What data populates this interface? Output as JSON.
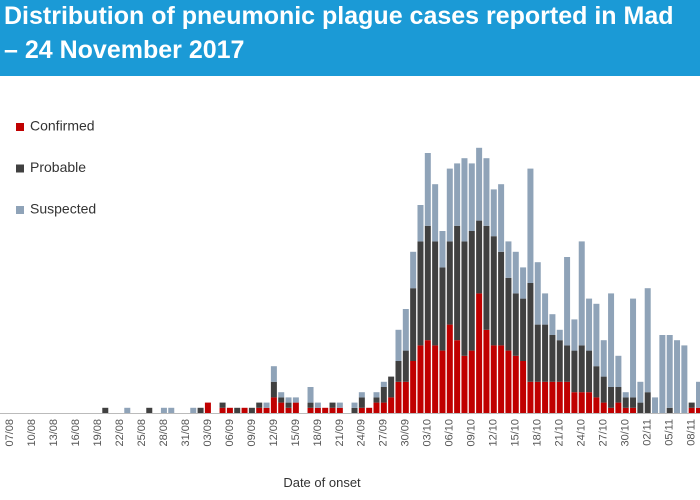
{
  "chart_data": {
    "type": "stacked-bar",
    "title_lines": [
      "Distribution of pneumonic plague cases reported in Mad",
      "– 24 November 2017"
    ],
    "x_label": "Date of onset",
    "categories": [
      "07/08",
      null,
      null,
      "10/08",
      null,
      null,
      "13/08",
      null,
      null,
      "16/08",
      null,
      null,
      "19/08",
      null,
      null,
      "22/08",
      null,
      null,
      "25/08",
      null,
      null,
      "28/08",
      null,
      null,
      "31/08",
      null,
      null,
      "03/09",
      null,
      null,
      "06/09",
      null,
      null,
      "09/09",
      null,
      null,
      "12/09",
      null,
      null,
      "15/09",
      null,
      null,
      "18/09",
      null,
      null,
      "21/09",
      null,
      null,
      "24/09",
      null,
      null,
      "27/09",
      null,
      null,
      "30/09",
      null,
      null,
      "03/10",
      null,
      null,
      "06/10",
      null,
      null,
      "09/10",
      null,
      null,
      "12/10",
      null,
      null,
      "15/10",
      null,
      null,
      "18/10",
      null,
      null,
      "21/10",
      null,
      null,
      "24/10",
      null,
      null,
      "27/10",
      null,
      null,
      "30/10",
      null,
      null,
      "02/11",
      null,
      null,
      "05/11",
      null,
      null,
      "08/11",
      null
    ],
    "series": [
      {
        "name": "Confirmed",
        "color": "#c00000",
        "values": [
          0,
          0,
          0,
          0,
          0,
          0,
          0,
          0,
          0,
          0,
          0,
          0,
          0,
          0,
          0,
          0,
          0,
          0,
          0,
          0,
          0,
          0,
          0,
          0,
          0,
          0,
          0,
          2,
          0,
          1,
          1,
          0,
          1,
          0,
          1,
          1,
          3,
          2,
          1,
          2,
          0,
          1,
          1,
          1,
          1,
          1,
          0,
          0,
          1,
          1,
          2,
          2,
          3,
          6,
          6,
          10,
          13,
          14,
          13,
          12,
          17,
          14,
          11,
          12,
          23,
          16,
          13,
          13,
          12,
          11,
          10,
          6,
          6,
          6,
          6,
          6,
          6,
          4,
          4,
          4,
          3,
          2,
          1,
          2,
          1,
          1,
          0,
          0,
          0,
          0,
          0,
          0,
          0,
          1,
          1
        ]
      },
      {
        "name": "Probable",
        "color": "#404040",
        "values": [
          0,
          0,
          0,
          0,
          0,
          0,
          0,
          0,
          0,
          0,
          0,
          0,
          0,
          1,
          0,
          0,
          0,
          0,
          0,
          1,
          0,
          0,
          0,
          0,
          0,
          0,
          1,
          0,
          0,
          1,
          0,
          1,
          0,
          1,
          1,
          0,
          3,
          1,
          1,
          0,
          0,
          1,
          0,
          0,
          1,
          0,
          0,
          1,
          2,
          0,
          1,
          3,
          4,
          4,
          6,
          14,
          20,
          22,
          20,
          16,
          16,
          22,
          22,
          23,
          14,
          20,
          21,
          18,
          14,
          12,
          12,
          19,
          11,
          11,
          9,
          8,
          7,
          8,
          9,
          8,
          6,
          5,
          4,
          3,
          2,
          2,
          2,
          4,
          0,
          0,
          1,
          0,
          0,
          1,
          0
        ]
      },
      {
        "name": "Suspected",
        "color": "#8fa3b8",
        "values": [
          0,
          0,
          0,
          0,
          0,
          0,
          0,
          0,
          0,
          0,
          0,
          0,
          0,
          0,
          0,
          0,
          1,
          0,
          0,
          0,
          0,
          1,
          1,
          0,
          0,
          1,
          0,
          0,
          0,
          0,
          0,
          0,
          0,
          0,
          0,
          1,
          3,
          1,
          1,
          1,
          0,
          3,
          1,
          0,
          0,
          1,
          0,
          1,
          1,
          0,
          1,
          1,
          0,
          6,
          8,
          7,
          7,
          14,
          11,
          7,
          14,
          12,
          16,
          13,
          14,
          13,
          9,
          13,
          7,
          8,
          6,
          22,
          12,
          6,
          4,
          2,
          17,
          6,
          20,
          10,
          12,
          7,
          18,
          6,
          1,
          19,
          4,
          20,
          3,
          15,
          14,
          14,
          13,
          0,
          5
        ]
      }
    ]
  }
}
